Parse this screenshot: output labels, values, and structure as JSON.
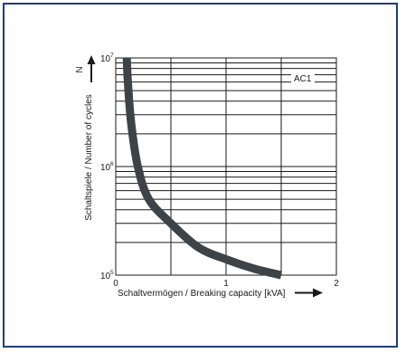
{
  "chart_data": {
    "type": "line",
    "title": "",
    "xlabel": "Schaltvermögen / Breaking capacity [kVA]",
    "ylabel": "Schaltspiele / Number of cycles",
    "y_arrow_symbol": "N",
    "x_scale": "linear",
    "y_scale": "log",
    "xlim": [
      0,
      2
    ],
    "ylim": [
      100000,
      10000000
    ],
    "x_ticks": [
      {
        "value": 0,
        "label": "0"
      },
      {
        "value": 1,
        "label": "1"
      },
      {
        "value": 2,
        "label": "2"
      }
    ],
    "y_ticks": [
      {
        "value": 100000,
        "base": "10",
        "exp": "5"
      },
      {
        "value": 1000000,
        "base": "10",
        "exp": "6"
      },
      {
        "value": 10000000,
        "base": "10",
        "exp": "7"
      }
    ],
    "grid": true,
    "series": [
      {
        "name": "AC1",
        "color": "#3d4347",
        "points": [
          [
            0.1,
            10000000
          ],
          [
            0.11,
            6000000
          ],
          [
            0.14,
            2500000
          ],
          [
            0.2,
            1000000
          ],
          [
            0.3,
            500000
          ],
          [
            0.5,
            300000
          ],
          [
            0.75,
            180000
          ],
          [
            1.0,
            140000
          ],
          [
            1.25,
            115000
          ],
          [
            1.5,
            100000
          ]
        ]
      }
    ],
    "annotations": [
      {
        "text": "AC1",
        "series": "AC1"
      }
    ]
  }
}
